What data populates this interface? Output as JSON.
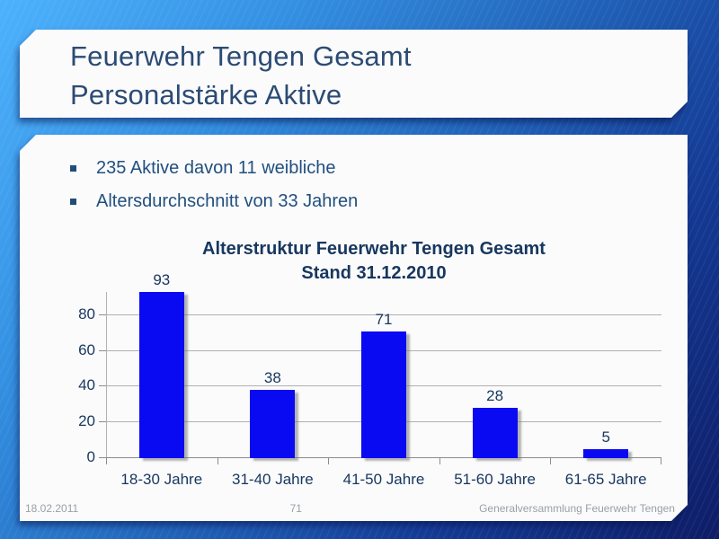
{
  "slide": {
    "title": {
      "line1": "Feuerwehr Tengen Gesamt",
      "line2": "Personalstärke Aktive"
    },
    "bullets": [
      "235 Aktive davon 11 weibliche",
      "Altersdurchschnitt von 33 Jahren"
    ],
    "footer": {
      "date": "18.02.2011",
      "page": "71",
      "right": "Generalversammlung Feuerwehr Tengen"
    }
  },
  "chart_data": {
    "type": "bar",
    "title_line1": "Alterstruktur Feuerwehr Tengen Gesamt",
    "title_line2": "Stand 31.12.2010",
    "categories": [
      "18-30 Jahre",
      "31-40 Jahre",
      "41-50 Jahre",
      "51-60 Jahre",
      "61-65 Jahre"
    ],
    "values": [
      93,
      38,
      71,
      28,
      5
    ],
    "yticks": [
      0,
      20,
      40,
      60,
      80
    ],
    "ylim": [
      0,
      93
    ],
    "grid": true,
    "data_labels": true,
    "legend": "none",
    "bar_color": "#0a0af2"
  },
  "colors": {
    "bar": "#0a0af2",
    "navy": "#17375E",
    "title_navy": "#2B4B74",
    "bullet_navy": "#21507E",
    "footer_gray": "#9aa0a6",
    "grid_gray": "#b0b0b0",
    "axis_gray": "#8c8c8c",
    "bg_top": "#4DB2FD",
    "bg_bottom": "#0E1C66"
  }
}
